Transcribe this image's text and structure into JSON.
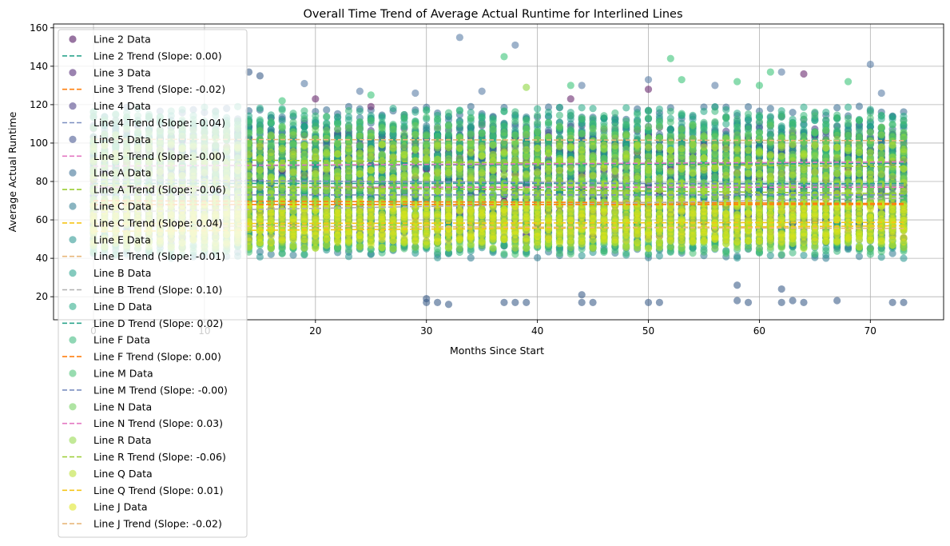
{
  "chart_data": {
    "type": "scatter",
    "title": "Overall Time Trend of Average Actual Runtime for Interlined Lines",
    "xlabel": "Months Since Start",
    "ylabel": "Average Actual Runtime",
    "xlim": [
      -3.6,
      76.6
    ],
    "ylim": [
      8,
      162
    ],
    "x_ticks": [
      0,
      10,
      20,
      30,
      40,
      50,
      60,
      70
    ],
    "y_ticks": [
      20,
      40,
      60,
      80,
      100,
      120,
      140,
      160
    ],
    "x_data_range": [
      0,
      73
    ],
    "grid": true,
    "legend_position": "upper-left",
    "series": [
      {
        "name": "Line 2 Data",
        "kind": "scatter",
        "color": "#440154",
        "band": [
          55,
          105
        ]
      },
      {
        "name": "Line 2 Trend (Slope: 0.00)",
        "kind": "trend",
        "color": "#2ca58d",
        "y_start": 79.0,
        "slope": 0.0
      },
      {
        "name": "Line 3 Data",
        "kind": "scatter",
        "color": "#481d6f",
        "band": [
          50,
          100
        ]
      },
      {
        "name": "Line 3 Trend (Slope: -0.02)",
        "kind": "trend",
        "color": "#ff7f0e",
        "y_start": 70.0,
        "slope": -0.02
      },
      {
        "name": "Line 4 Data",
        "kind": "scatter",
        "color": "#453781",
        "band": [
          55,
          110
        ]
      },
      {
        "name": "Line 4 Trend (Slope: -0.04)",
        "kind": "trend",
        "color": "#7b8fc0",
        "y_start": 81.0,
        "slope": -0.04
      },
      {
        "name": "Line 5 Data",
        "kind": "scatter",
        "color": "#3d4d8a",
        "band": [
          50,
          105
        ]
      },
      {
        "name": "Line 5 Trend (Slope: -0.00)",
        "kind": "trend",
        "color": "#e377c2",
        "y_start": 77.0,
        "slope": 0.0
      },
      {
        "name": "Line A Data",
        "kind": "scatter",
        "color": "#31688e",
        "band": [
          45,
          120
        ]
      },
      {
        "name": "Line A Trend (Slope: -0.06)",
        "kind": "trend",
        "color": "#9acd32",
        "y_start": 92.0,
        "slope": -0.06
      },
      {
        "name": "Line C Data",
        "kind": "scatter",
        "color": "#2a788e",
        "band": [
          40,
          115
        ]
      },
      {
        "name": "Line C Trend (Slope: 0.04)",
        "kind": "trend",
        "color": "#f5c518",
        "y_start": 54.0,
        "slope": 0.04
      },
      {
        "name": "Line E Data",
        "kind": "scatter",
        "color": "#21918c",
        "band": [
          40,
          110
        ]
      },
      {
        "name": "Line E Trend (Slope: -0.01)",
        "kind": "trend",
        "color": "#e8b77a",
        "y_start": 102.0,
        "slope": -0.01
      },
      {
        "name": "Line B Data",
        "kind": "scatter",
        "color": "#1f9e89",
        "band": [
          45,
          115
        ]
      },
      {
        "name": "Line B Trend (Slope: 0.10)",
        "kind": "trend",
        "color": "#b0b0b0",
        "y_start": 64.0,
        "slope": 0.1
      },
      {
        "name": "Line D Data",
        "kind": "scatter",
        "color": "#22a884",
        "band": [
          45,
          120
        ]
      },
      {
        "name": "Line D Trend (Slope: 0.02)",
        "kind": "trend",
        "color": "#2ca58d",
        "y_start": 88.0,
        "slope": 0.02
      },
      {
        "name": "Line F Data",
        "kind": "scatter",
        "color": "#35b779",
        "band": [
          42,
          118
        ]
      },
      {
        "name": "Line F Trend (Slope: 0.00)",
        "kind": "trend",
        "color": "#ff7f0e",
        "y_start": 68.0,
        "slope": 0.0
      },
      {
        "name": "Line M Data",
        "kind": "scatter",
        "color": "#44bf70",
        "band": [
          42,
          115
        ]
      },
      {
        "name": "Line M Trend (Slope: -0.00)",
        "kind": "trend",
        "color": "#7b8fc0",
        "y_start": 73.0,
        "slope": 0.0
      },
      {
        "name": "Line N Data",
        "kind": "scatter",
        "color": "#6ece58",
        "band": [
          45,
          110
        ]
      },
      {
        "name": "Line N Trend (Slope: 0.03)",
        "kind": "trend",
        "color": "#e377c2",
        "y_start": 88.0,
        "slope": 0.03
      },
      {
        "name": "Line R Data",
        "kind": "scatter",
        "color": "#90d743",
        "band": [
          45,
          105
        ]
      },
      {
        "name": "Line R Trend (Slope: -0.06)",
        "kind": "trend",
        "color": "#9acd32",
        "y_start": 78.0,
        "slope": -0.06
      },
      {
        "name": "Line Q Data",
        "kind": "scatter",
        "color": "#b8de29",
        "band": [
          45,
          100
        ]
      },
      {
        "name": "Line Q Trend (Slope: 0.01)",
        "kind": "trend",
        "color": "#f5c518",
        "y_start": 58.0,
        "slope": 0.01
      },
      {
        "name": "Line J Data",
        "kind": "scatter",
        "color": "#dde318",
        "band": [
          48,
          70
        ]
      },
      {
        "name": "Line J Trend (Slope: -0.02)",
        "kind": "trend",
        "color": "#e8b77a",
        "y_start": 57.0,
        "slope": -0.02
      }
    ],
    "outliers": [
      {
        "x": 33,
        "y": 155,
        "color": "#5b7fa6"
      },
      {
        "x": 38,
        "y": 151,
        "color": "#5b7fa6"
      },
      {
        "x": 37,
        "y": 145,
        "color": "#3dc57a"
      },
      {
        "x": 52,
        "y": 144,
        "color": "#3dc57a"
      },
      {
        "x": 70,
        "y": 141,
        "color": "#5b7fa6"
      },
      {
        "x": 61,
        "y": 137,
        "color": "#3dc57a"
      },
      {
        "x": 62,
        "y": 137,
        "color": "#5b7fa6"
      },
      {
        "x": 64,
        "y": 136,
        "color": "#6a2c70"
      },
      {
        "x": 14,
        "y": 137,
        "color": "#3d5f8a"
      },
      {
        "x": 15,
        "y": 135,
        "color": "#3d5f8a"
      },
      {
        "x": 53,
        "y": 133,
        "color": "#3dc57a"
      },
      {
        "x": 50,
        "y": 133,
        "color": "#5b7fa6"
      },
      {
        "x": 68,
        "y": 132,
        "color": "#3dc57a"
      },
      {
        "x": 58,
        "y": 132,
        "color": "#3dc57a"
      },
      {
        "x": 19,
        "y": 131,
        "color": "#5b7fa6"
      },
      {
        "x": 43,
        "y": 130,
        "color": "#3dc57a"
      },
      {
        "x": 44,
        "y": 130,
        "color": "#5b7fa6"
      },
      {
        "x": 56,
        "y": 130,
        "color": "#5b7fa6"
      },
      {
        "x": 39,
        "y": 129,
        "color": "#90d743"
      },
      {
        "x": 60,
        "y": 130,
        "color": "#3dc57a"
      },
      {
        "x": 50,
        "y": 128,
        "color": "#6a2c70"
      },
      {
        "x": 24,
        "y": 127,
        "color": "#5b7fa6"
      },
      {
        "x": 35,
        "y": 127,
        "color": "#5b7fa6"
      },
      {
        "x": 29,
        "y": 126,
        "color": "#5b7fa6"
      },
      {
        "x": 25,
        "y": 125,
        "color": "#3dc57a"
      },
      {
        "x": 71,
        "y": 126,
        "color": "#5b7fa6"
      },
      {
        "x": 43,
        "y": 123,
        "color": "#6a2c70"
      },
      {
        "x": 17,
        "y": 122,
        "color": "#3dc57a"
      },
      {
        "x": 20,
        "y": 123,
        "color": "#6a2c70"
      },
      {
        "x": 25,
        "y": 119,
        "color": "#6a2c70"
      },
      {
        "x": 30,
        "y": 19,
        "color": "#3d5f8a"
      },
      {
        "x": 30,
        "y": 17,
        "color": "#3d5f8a"
      },
      {
        "x": 31,
        "y": 17,
        "color": "#3d5f8a"
      },
      {
        "x": 32,
        "y": 16,
        "color": "#3d5f8a"
      },
      {
        "x": 37,
        "y": 17,
        "color": "#3d5f8a"
      },
      {
        "x": 38,
        "y": 17,
        "color": "#3d5f8a"
      },
      {
        "x": 39,
        "y": 17,
        "color": "#3d5f8a"
      },
      {
        "x": 44,
        "y": 21,
        "color": "#3d5f8a"
      },
      {
        "x": 44,
        "y": 17,
        "color": "#3d5f8a"
      },
      {
        "x": 45,
        "y": 17,
        "color": "#3d5f8a"
      },
      {
        "x": 50,
        "y": 17,
        "color": "#3d5f8a"
      },
      {
        "x": 51,
        "y": 17,
        "color": "#3d5f8a"
      },
      {
        "x": 58,
        "y": 26,
        "color": "#3d5f8a"
      },
      {
        "x": 58,
        "y": 18,
        "color": "#3d5f8a"
      },
      {
        "x": 59,
        "y": 17,
        "color": "#3d5f8a"
      },
      {
        "x": 62,
        "y": 24,
        "color": "#3d5f8a"
      },
      {
        "x": 62,
        "y": 17,
        "color": "#3d5f8a"
      },
      {
        "x": 63,
        "y": 18,
        "color": "#3d5f8a"
      },
      {
        "x": 64,
        "y": 17,
        "color": "#3d5f8a"
      },
      {
        "x": 67,
        "y": 18,
        "color": "#3d5f8a"
      },
      {
        "x": 72,
        "y": 17,
        "color": "#3d5f8a"
      },
      {
        "x": 73,
        "y": 17,
        "color": "#3d5f8a"
      }
    ]
  }
}
